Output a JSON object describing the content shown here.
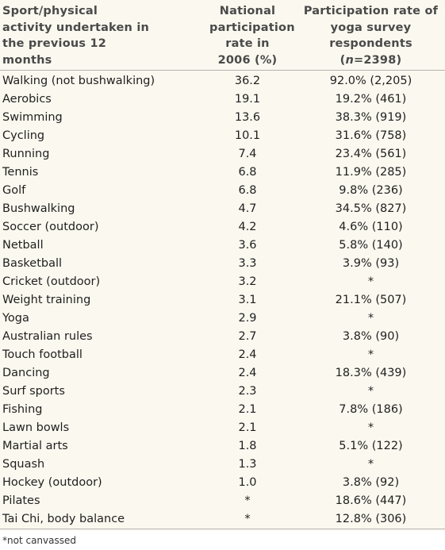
{
  "table": {
    "headers": {
      "activity": "Sport/physical activity undertaken in the previous 12 months",
      "national": "National participation rate in 2006 (%)",
      "yoga_prefix": "Participation rate of yoga survey respondents (",
      "yoga_n": "n",
      "yoga_suffix": "=2398)"
    },
    "rows": [
      {
        "activity": "Walking (not bushwalking)",
        "national": "36.2",
        "yoga": "92.0% (2,205)"
      },
      {
        "activity": "Aerobics",
        "national": "19.1",
        "yoga": "19.2% (461)"
      },
      {
        "activity": "Swimming",
        "national": "13.6",
        "yoga": "38.3% (919)"
      },
      {
        "activity": "Cycling",
        "national": "10.1",
        "yoga": "31.6% (758)"
      },
      {
        "activity": "Running",
        "national": "7.4",
        "yoga": "23.4% (561)"
      },
      {
        "activity": "Tennis",
        "national": "6.8",
        "yoga": "11.9% (285)"
      },
      {
        "activity": "Golf",
        "national": "6.8",
        "yoga": "9.8% (236)"
      },
      {
        "activity": "Bushwalking",
        "national": "4.7",
        "yoga": "34.5% (827)"
      },
      {
        "activity": "Soccer (outdoor)",
        "national": "4.2",
        "yoga": "4.6% (110)"
      },
      {
        "activity": "Netball",
        "national": "3.6",
        "yoga": "5.8% (140)"
      },
      {
        "activity": "Basketball",
        "national": "3.3",
        "yoga": "3.9% (93)"
      },
      {
        "activity": "Cricket (outdoor)",
        "national": "3.2",
        "yoga": "*"
      },
      {
        "activity": "Weight training",
        "national": "3.1",
        "yoga": "21.1% (507)"
      },
      {
        "activity": "Yoga",
        "national": "2.9",
        "yoga": "*"
      },
      {
        "activity": "Australian rules",
        "national": "2.7",
        "yoga": "3.8% (90)"
      },
      {
        "activity": "Touch football",
        "national": "2.4",
        "yoga": "*"
      },
      {
        "activity": "Dancing",
        "national": "2.4",
        "yoga": "18.3% (439)"
      },
      {
        "activity": "Surf sports",
        "national": "2.3",
        "yoga": "*"
      },
      {
        "activity": "Fishing",
        "national": "2.1",
        "yoga": "7.8% (186)"
      },
      {
        "activity": "Lawn bowls",
        "national": "2.1",
        "yoga": "*"
      },
      {
        "activity": "Martial arts",
        "national": "1.8",
        "yoga": "5.1% (122)"
      },
      {
        "activity": "Squash",
        "national": "1.3",
        "yoga": "*"
      },
      {
        "activity": "Hockey (outdoor)",
        "national": "1.0",
        "yoga": "3.8% (92)"
      },
      {
        "activity": "Pilates",
        "national": "*",
        "yoga": "18.6% (447)"
      },
      {
        "activity": "Tai Chi, body balance",
        "national": "*",
        "yoga": "12.8% (306)"
      }
    ]
  },
  "footnote": "*not canvassed",
  "colors": {
    "background": "#fbf8ef",
    "rule": "#b3b3b3",
    "header_text": "#4a4a4a"
  }
}
